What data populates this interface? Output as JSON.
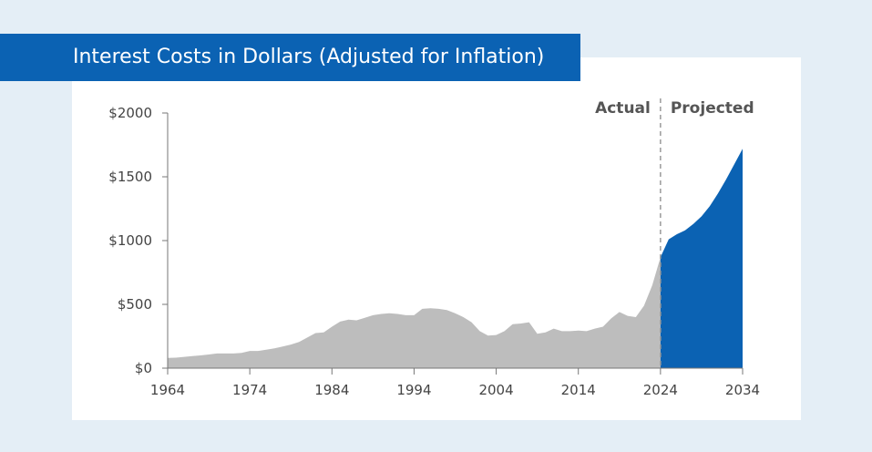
{
  "chart_data": {
    "type": "area",
    "title": "Interest Costs in Dollars (Adjusted for Inflation)",
    "xlabel": "",
    "ylabel": "",
    "xlim": [
      1964,
      2034
    ],
    "ylim": [
      0,
      2000
    ],
    "x_ticks": [
      "1964",
      "1974",
      "1984",
      "1994",
      "2004",
      "2014",
      "2024",
      "2034"
    ],
    "y_ticks": [
      "$0",
      "$500",
      "$1000",
      "$1500",
      "$2000"
    ],
    "region_labels": {
      "actual": "Actual",
      "projected": "Projected"
    },
    "divider_year": 2024,
    "colors": {
      "actual": "#bdbdbd",
      "projected": "#0b62b3",
      "title_bar": "#0b62b3"
    },
    "series": [
      {
        "x": [
          1964,
          1965,
          1966,
          1967,
          1968,
          1969,
          1970,
          1971,
          1972,
          1973,
          1974,
          1975,
          1976,
          1977,
          1978,
          1979,
          1980,
          1981,
          1982,
          1983,
          1984,
          1985,
          1986,
          1987,
          1988,
          1989,
          1990,
          1991,
          1992,
          1993,
          1994,
          1995,
          1996,
          1997,
          1998,
          1999,
          2000,
          2001,
          2002,
          2003,
          2004,
          2005,
          2006,
          2007,
          2008,
          2009,
          2010,
          2011,
          2012,
          2013,
          2014,
          2015,
          2016,
          2017,
          2018,
          2019,
          2020,
          2021,
          2022,
          2023,
          2024
        ],
        "y": [
          80,
          82,
          88,
          95,
          100,
          107,
          115,
          115,
          115,
          120,
          135,
          135,
          145,
          155,
          170,
          185,
          205,
          240,
          275,
          280,
          325,
          365,
          380,
          375,
          395,
          415,
          425,
          430,
          425,
          415,
          415,
          465,
          470,
          465,
          455,
          430,
          400,
          360,
          290,
          255,
          260,
          290,
          345,
          350,
          360,
          270,
          280,
          310,
          290,
          290,
          295,
          290,
          310,
          325,
          390,
          440,
          410,
          400,
          490,
          650,
          870
        ]
      },
      {
        "x": [
          2024,
          2025,
          2026,
          2027,
          2028,
          2029,
          2030,
          2031,
          2032,
          2033,
          2034
        ],
        "y": [
          870,
          1010,
          1050,
          1080,
          1130,
          1190,
          1270,
          1370,
          1480,
          1600,
          1720
        ]
      }
    ]
  }
}
